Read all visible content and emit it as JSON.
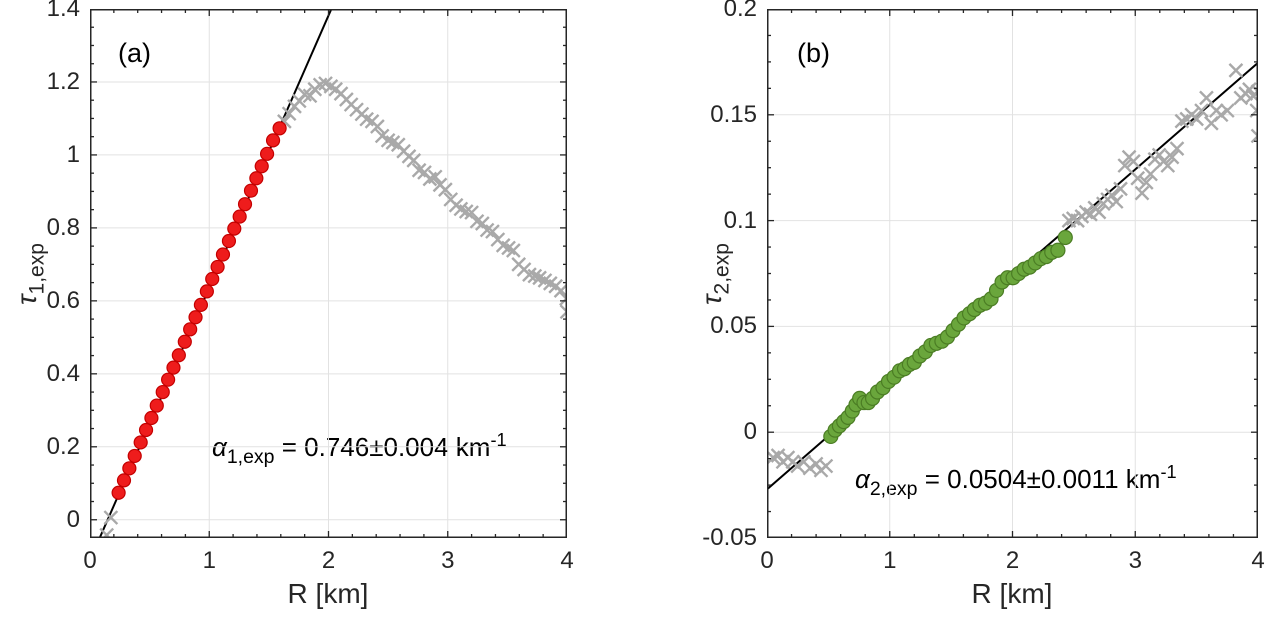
{
  "style": {
    "background": "#ffffff",
    "axis_color": "#262626",
    "grid_color": "#e2e2e2",
    "fit_line_color": "#000000",
    "excluded_marker_color": "#a9a9a9",
    "panel_a_marker_fill": "#ee1c1c",
    "panel_a_marker_edge": "#c40000",
    "panel_b_marker_fill": "#6aa63c",
    "panel_b_marker_edge": "#4b7d24"
  },
  "chart_data": [
    {
      "type": "scatter",
      "panel_label": "(a)",
      "xlabel": "R [km]",
      "ylabel": {
        "symbol": "τ",
        "subscript": "1,exp"
      },
      "xlim": [
        0,
        4
      ],
      "ylim": [
        -0.05,
        1.4
      ],
      "grid": true,
      "xticks": {
        "values": [
          0,
          1,
          2,
          3,
          4
        ],
        "labels": [
          "0",
          "1",
          "2",
          "3",
          "4"
        ],
        "minor_step": 0.2
      },
      "yticks": {
        "values": [
          0,
          0.2,
          0.4,
          0.6,
          0.8,
          1,
          1.2,
          1.4
        ],
        "labels": [
          "0",
          "0.2",
          "0.4",
          "0.6",
          "0.8",
          "1",
          "1.2",
          "1.4"
        ],
        "minor_step": 0.05
      },
      "annotation": {
        "symbol": "α",
        "subscript": "1,exp",
        "text": " = 0.746±0.004 km",
        "superscript": "-1"
      },
      "fit_line": {
        "color": "#000000",
        "x": [
          0.081,
          2.024
        ],
        "y": [
          -0.05,
          1.4
        ],
        "width": 2
      },
      "series": [
        {
          "name": "excluded-points-gray-x",
          "marker": "x",
          "color": "#a9a9a9",
          "size": 13,
          "points": [
            [
              0.14,
              -0.042
            ],
            [
              0.175,
              0.006
            ],
            [
              1.63,
              1.092
            ],
            [
              1.67,
              1.113
            ],
            [
              1.715,
              1.133
            ],
            [
              1.755,
              1.148
            ],
            [
              1.8,
              1.166
            ],
            [
              1.845,
              1.162
            ],
            [
              1.885,
              1.18
            ],
            [
              1.93,
              1.192
            ],
            [
              1.975,
              1.196
            ],
            [
              2.02,
              1.188
            ],
            [
              2.06,
              1.18
            ],
            [
              2.105,
              1.168
            ],
            [
              2.15,
              1.152
            ],
            [
              2.19,
              1.138
            ],
            [
              2.235,
              1.124
            ],
            [
              2.28,
              1.112
            ],
            [
              2.32,
              1.098
            ],
            [
              2.365,
              1.092
            ],
            [
              2.41,
              1.078
            ],
            [
              2.45,
              1.052
            ],
            [
              2.5,
              1.04
            ],
            [
              2.54,
              1.034
            ],
            [
              2.585,
              1.028
            ],
            [
              2.63,
              1.01
            ],
            [
              2.675,
              0.996
            ],
            [
              2.715,
              0.985
            ],
            [
              2.76,
              0.958
            ],
            [
              2.805,
              0.952
            ],
            [
              2.85,
              0.934
            ],
            [
              2.895,
              0.94
            ],
            [
              2.935,
              0.918
            ],
            [
              2.98,
              0.905
            ],
            [
              3.025,
              0.878
            ],
            [
              3.07,
              0.862
            ],
            [
              3.11,
              0.852
            ],
            [
              3.155,
              0.845
            ],
            [
              3.2,
              0.842
            ],
            [
              3.245,
              0.818
            ],
            [
              3.29,
              0.812
            ],
            [
              3.33,
              0.794
            ],
            [
              3.375,
              0.79
            ],
            [
              3.42,
              0.768
            ],
            [
              3.465,
              0.752
            ],
            [
              3.51,
              0.745
            ],
            [
              3.55,
              0.738
            ],
            [
              3.595,
              0.7
            ],
            [
              3.64,
              0.686
            ],
            [
              3.685,
              0.672
            ],
            [
              3.73,
              0.668
            ],
            [
              3.77,
              0.663
            ],
            [
              3.815,
              0.656
            ],
            [
              3.86,
              0.648
            ],
            [
              3.905,
              0.64
            ],
            [
              3.95,
              0.628
            ],
            [
              3.995,
              0.606
            ],
            [
              4.0,
              0.57
            ]
          ]
        },
        {
          "name": "fit-range-points-red-circles",
          "marker": "circle",
          "fill": "#ee1c1c",
          "edge": "#c40000",
          "size": 13,
          "points": [
            [
              0.24,
              0.074
            ],
            [
              0.285,
              0.108
            ],
            [
              0.33,
              0.141
            ],
            [
              0.375,
              0.175
            ],
            [
              0.425,
              0.212
            ],
            [
              0.47,
              0.246
            ],
            [
              0.515,
              0.279
            ],
            [
              0.56,
              0.313
            ],
            [
              0.61,
              0.35
            ],
            [
              0.655,
              0.384
            ],
            [
              0.7,
              0.417
            ],
            [
              0.745,
              0.451
            ],
            [
              0.795,
              0.488
            ],
            [
              0.84,
              0.522
            ],
            [
              0.885,
              0.555
            ],
            [
              0.93,
              0.589
            ],
            [
              0.98,
              0.626
            ],
            [
              1.025,
              0.66
            ],
            [
              1.07,
              0.693
            ],
            [
              1.115,
              0.727
            ],
            [
              1.165,
              0.764
            ],
            [
              1.21,
              0.798
            ],
            [
              1.255,
              0.831
            ],
            [
              1.3,
              0.865
            ],
            [
              1.35,
              0.902
            ],
            [
              1.395,
              0.936
            ],
            [
              1.44,
              0.969
            ],
            [
              1.485,
              1.003
            ],
            [
              1.535,
              1.04
            ],
            [
              1.59,
              1.073
            ]
          ]
        }
      ]
    },
    {
      "type": "scatter",
      "panel_label": "(b)",
      "xlabel": "R [km]",
      "ylabel": {
        "symbol": "τ",
        "subscript": "2,exp"
      },
      "xlim": [
        0,
        4
      ],
      "ylim": [
        -0.05,
        0.2
      ],
      "grid": true,
      "xticks": {
        "values": [
          0,
          1,
          2,
          3,
          4
        ],
        "labels": [
          "0",
          "1",
          "2",
          "3",
          "4"
        ],
        "minor_step": 0.2
      },
      "yticks": {
        "values": [
          -0.05,
          0,
          0.05,
          0.1,
          0.15,
          0.2
        ],
        "labels": [
          "-0.05",
          "0",
          "0.05",
          "0.1",
          "0.15",
          "0.2"
        ],
        "minor_step": 0.0125
      },
      "annotation": {
        "symbol": "α",
        "subscript": "2,exp",
        "text": " = 0.0504±0.0011 km",
        "superscript": "-1"
      },
      "fit_line": {
        "color": "#000000",
        "x": [
          0,
          4
        ],
        "y": [
          -0.027,
          0.1746
        ],
        "width": 2
      },
      "series": [
        {
          "name": "excluded-points-gray-x",
          "marker": "x",
          "color": "#a9a9a9",
          "size": 13,
          "points": [
            [
              0.05,
              -0.012
            ],
            [
              0.09,
              -0.011
            ],
            [
              0.13,
              -0.014
            ],
            [
              0.17,
              -0.012
            ],
            [
              0.21,
              -0.014
            ],
            [
              0.25,
              -0.016
            ],
            [
              0.3,
              -0.014
            ],
            [
              0.35,
              -0.017
            ],
            [
              0.4,
              -0.015
            ],
            [
              0.44,
              -0.018
            ],
            [
              0.48,
              -0.016
            ],
            [
              2.46,
              0.1
            ],
            [
              2.495,
              0.101
            ],
            [
              2.53,
              0.1
            ],
            [
              2.565,
              0.102
            ],
            [
              2.6,
              0.104
            ],
            [
              2.635,
              0.103
            ],
            [
              2.67,
              0.106
            ],
            [
              2.705,
              0.104
            ],
            [
              2.74,
              0.108
            ],
            [
              2.775,
              0.11
            ],
            [
              2.81,
              0.112
            ],
            [
              2.845,
              0.109
            ],
            [
              2.88,
              0.115
            ],
            [
              2.915,
              0.126
            ],
            [
              2.95,
              0.13
            ],
            [
              2.985,
              0.128
            ],
            [
              3.02,
              0.12
            ],
            [
              3.055,
              0.113
            ],
            [
              3.09,
              0.118
            ],
            [
              3.125,
              0.122
            ],
            [
              3.16,
              0.129
            ],
            [
              3.195,
              0.131
            ],
            [
              3.23,
              0.128
            ],
            [
              3.265,
              0.126
            ],
            [
              3.3,
              0.13
            ],
            [
              3.34,
              0.134
            ],
            [
              3.38,
              0.147
            ],
            [
              3.42,
              0.148
            ],
            [
              3.46,
              0.15
            ],
            [
              3.5,
              0.148
            ],
            [
              3.54,
              0.152
            ],
            [
              3.58,
              0.158
            ],
            [
              3.62,
              0.146
            ],
            [
              3.66,
              0.152
            ],
            [
              3.7,
              0.15
            ],
            [
              3.75,
              0.152
            ],
            [
              3.82,
              0.171
            ],
            [
              3.86,
              0.158
            ],
            [
              3.9,
              0.16
            ],
            [
              3.93,
              0.162
            ],
            [
              3.96,
              0.159
            ],
            [
              3.99,
              0.152
            ],
            [
              4.0,
              0.161
            ],
            [
              4.0,
              0.14
            ]
          ]
        },
        {
          "name": "fit-range-points-green-circles",
          "marker": "circle",
          "fill": "#6aa63c",
          "edge": "#4b7d24",
          "size": 14,
          "points": [
            [
              0.52,
              -0.002
            ],
            [
              0.555,
              0.001
            ],
            [
              0.59,
              0.003
            ],
            [
              0.625,
              0.005
            ],
            [
              0.66,
              0.007
            ],
            [
              0.695,
              0.01
            ],
            [
              0.725,
              0.013
            ],
            [
              0.755,
              0.016
            ],
            [
              0.79,
              0.014
            ],
            [
              0.825,
              0.014
            ],
            [
              0.86,
              0.016
            ],
            [
              0.9,
              0.019
            ],
            [
              0.945,
              0.021
            ],
            [
              0.99,
              0.024
            ],
            [
              1.035,
              0.026
            ],
            [
              1.08,
              0.029
            ],
            [
              1.12,
              0.03
            ],
            [
              1.16,
              0.032
            ],
            [
              1.2,
              0.033
            ],
            [
              1.245,
              0.036
            ],
            [
              1.29,
              0.038
            ],
            [
              1.335,
              0.041
            ],
            [
              1.38,
              0.042
            ],
            [
              1.425,
              0.043
            ],
            [
              1.47,
              0.045
            ],
            [
              1.515,
              0.048
            ],
            [
              1.56,
              0.051
            ],
            [
              1.605,
              0.054
            ],
            [
              1.65,
              0.056
            ],
            [
              1.69,
              0.058
            ],
            [
              1.735,
              0.06
            ],
            [
              1.78,
              0.061
            ],
            [
              1.825,
              0.063
            ],
            [
              1.87,
              0.067
            ],
            [
              1.915,
              0.071
            ],
            [
              1.96,
              0.073
            ],
            [
              2.005,
              0.073
            ],
            [
              2.05,
              0.075
            ],
            [
              2.095,
              0.077
            ],
            [
              2.14,
              0.078
            ],
            [
              2.185,
              0.08
            ],
            [
              2.23,
              0.082
            ],
            [
              2.275,
              0.083
            ],
            [
              2.32,
              0.085
            ],
            [
              2.37,
              0.086
            ],
            [
              2.43,
              0.092
            ]
          ]
        }
      ]
    }
  ]
}
